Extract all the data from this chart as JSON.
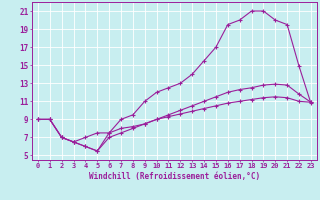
{
  "title": "",
  "xlabel": "Windchill (Refroidissement éolien,°C)",
  "background_color": "#c8eef0",
  "line_color": "#9b1f9b",
  "grid_color": "#ffffff",
  "xlim": [
    -0.5,
    23.5
  ],
  "ylim": [
    4.5,
    22
  ],
  "xticks": [
    0,
    1,
    2,
    3,
    4,
    5,
    6,
    7,
    8,
    9,
    10,
    11,
    12,
    13,
    14,
    15,
    16,
    17,
    18,
    19,
    20,
    21,
    22,
    23
  ],
  "yticks": [
    5,
    7,
    9,
    11,
    13,
    15,
    17,
    19,
    21
  ],
  "line1_x": [
    0,
    1,
    2,
    3,
    4,
    5,
    6,
    7,
    8,
    9,
    10,
    11,
    12,
    13,
    14,
    15,
    16,
    17,
    18,
    19,
    20,
    21,
    22,
    23
  ],
  "line1_y": [
    9,
    9,
    7,
    6.5,
    6,
    5.5,
    7.5,
    9,
    9.5,
    11,
    12,
    12.5,
    13,
    14,
    15.5,
    17,
    19.5,
    20,
    21,
    21,
    20,
    19.5,
    14.9,
    10.8
  ],
  "line2_x": [
    0,
    1,
    2,
    3,
    4,
    5,
    6,
    7,
    8,
    9,
    10,
    11,
    12,
    13,
    14,
    15,
    16,
    17,
    18,
    19,
    20,
    21,
    22,
    23
  ],
  "line2_y": [
    9,
    9,
    7,
    6.5,
    7,
    7.5,
    7.5,
    8,
    8.2,
    8.5,
    9,
    9.5,
    10,
    10.5,
    11,
    11.5,
    12,
    12.3,
    12.5,
    12.8,
    12.9,
    12.8,
    11.8,
    10.9
  ],
  "line3_x": [
    0,
    1,
    2,
    3,
    4,
    5,
    6,
    7,
    8,
    9,
    10,
    11,
    12,
    13,
    14,
    15,
    16,
    17,
    18,
    19,
    20,
    21,
    22,
    23
  ],
  "line3_y": [
    9,
    9,
    7,
    6.5,
    6,
    5.5,
    7,
    7.5,
    8,
    8.5,
    9,
    9.3,
    9.6,
    9.9,
    10.2,
    10.5,
    10.8,
    11,
    11.2,
    11.4,
    11.5,
    11.4,
    11.0,
    10.9
  ]
}
